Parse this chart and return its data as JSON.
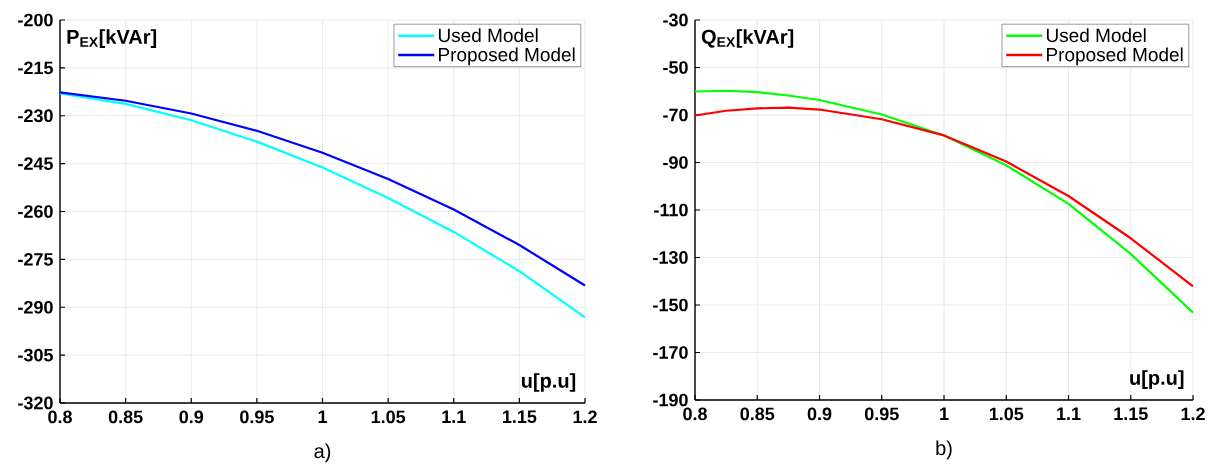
{
  "chart_data": [
    {
      "type": "line",
      "ylabel": "P$_{EX}$[kVAr]",
      "xlabel": "u[p.u]",
      "annotations": [
        "a)"
      ],
      "x": [
        0.8,
        0.85,
        0.9,
        0.95,
        1.0,
        1.05,
        1.1,
        1.15,
        1.2
      ],
      "series": [
        {
          "name": "Used Model",
          "color": "#00ffff",
          "values": [
            -223.0,
            -226.3,
            -231.4,
            -238.1,
            -246.2,
            -255.8,
            -266.4,
            -278.7,
            -293.2
          ]
        },
        {
          "name": "Proposed Model",
          "color": "#0000ff",
          "values": [
            -222.7,
            -225.3,
            -229.3,
            -234.7,
            -241.6,
            -249.8,
            -259.4,
            -270.5,
            -283.2
          ]
        }
      ],
      "xlim": [
        0.8,
        1.2
      ],
      "ylim": [
        -320,
        -200
      ],
      "xticks": [
        0.8,
        0.85,
        0.9,
        0.95,
        1,
        1.05,
        1.1,
        1.15,
        1.2
      ],
      "yticks": [
        -320,
        -305,
        -290,
        -275,
        -260,
        -245,
        -230,
        -215,
        -200
      ],
      "grid": true,
      "legend": "top right"
    },
    {
      "type": "line",
      "ylabel": "Q$_{EX}$[kVAr]",
      "xlabel": "u[p.u]",
      "annotations": [
        "b)"
      ],
      "x": [
        0.8,
        0.825,
        0.85,
        0.875,
        0.9,
        0.95,
        1.0,
        1.05,
        1.1,
        1.15,
        1.2
      ],
      "series": [
        {
          "name": "Used Model",
          "color": "#00ff00",
          "values": [
            -60.1,
            -59.8,
            -60.4,
            -61.8,
            -63.7,
            -69.8,
            -78.6,
            -91.2,
            -107.4,
            -128.5,
            -153.2
          ]
        },
        {
          "name": "Proposed Model",
          "color": "#ff0000",
          "values": [
            -70.2,
            -68.2,
            -67.2,
            -66.9,
            -67.7,
            -71.8,
            -78.6,
            -89.6,
            -104.1,
            -121.9,
            -142.2
          ]
        }
      ],
      "xlim": [
        0.8,
        1.2
      ],
      "ylim": [
        -190,
        -30
      ],
      "xticks": [
        0.8,
        0.85,
        0.9,
        0.95,
        1,
        1.05,
        1.1,
        1.15,
        1.2
      ],
      "yticks": [
        -190,
        -170,
        -150,
        -130,
        -110,
        -90,
        -70,
        -50,
        -30
      ],
      "grid": true,
      "legend": "top right"
    }
  ]
}
